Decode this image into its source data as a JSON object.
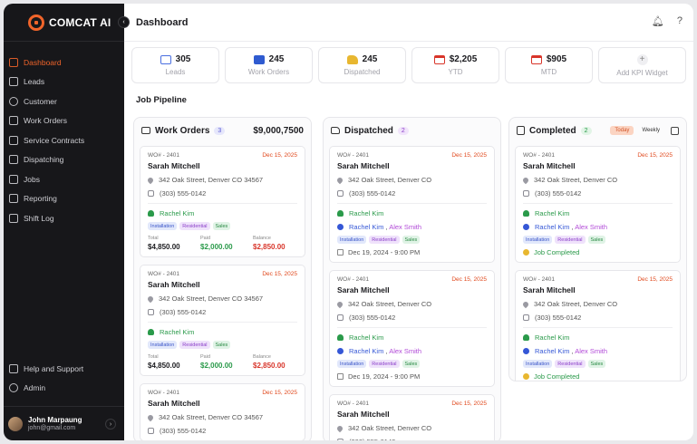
{
  "app": {
    "logo_text": "COMCAT",
    "logo_ai": "AI",
    "page_title": "Dashboard"
  },
  "sidebar": {
    "items": [
      {
        "label": "Dashboard",
        "icon": "home-icon",
        "active": true
      },
      {
        "label": "Leads",
        "icon": "funnel-icon"
      },
      {
        "label": "Customer",
        "icon": "users-icon"
      },
      {
        "label": "Work Orders",
        "icon": "briefcase-icon"
      },
      {
        "label": "Service Contracts",
        "icon": "contract-icon"
      },
      {
        "label": "Dispatching",
        "icon": "truck-icon"
      },
      {
        "label": "Jobs",
        "icon": "building-icon"
      },
      {
        "label": "Reporting",
        "icon": "report-icon"
      },
      {
        "label": "Shift Log",
        "icon": "clipboard-icon"
      }
    ],
    "bottom_items": [
      {
        "label": "Help and Support",
        "icon": "help-icon"
      },
      {
        "label": "Admin",
        "icon": "admin-icon"
      }
    ],
    "user": {
      "name": "John Marpaung",
      "email": "john@gmail.com"
    }
  },
  "kpis": [
    {
      "value": "305",
      "label": "Leads",
      "icon": "leads-icon",
      "color": "#4a6fe0"
    },
    {
      "value": "245",
      "label": "Work Orders",
      "icon": "briefcase-icon",
      "color": "#2f5bd0"
    },
    {
      "value": "245",
      "label": "Dispatched",
      "icon": "truck-icon",
      "color": "#e8b730"
    },
    {
      "value": "$2,205",
      "label": "YTD",
      "icon": "calendar-icon",
      "color": "#d8352a"
    },
    {
      "value": "$905",
      "label": "MTD",
      "icon": "calendar-icon",
      "color": "#d8352a"
    }
  ],
  "add_kpi": {
    "label": "Add KPI Widget",
    "plus": "+"
  },
  "pipeline": {
    "title": "Job Pipeline",
    "work_orders": {
      "title": "Work Orders",
      "count": "3",
      "amount": "$9,000,7500"
    },
    "dispatched": {
      "title": "Dispatched",
      "count": "2"
    },
    "completed": {
      "title": "Completed",
      "count": "2",
      "today": "Today",
      "weekly": "Weekly"
    },
    "card": {
      "wo": "WO# - 2401",
      "date": "Dec 15, 2025",
      "name": "Sarah Mitchell",
      "address": "342 Oak Street, Denver CO 34567",
      "address_short": "342 Oak Street, Denver CO",
      "phone": "(303) 555-0142",
      "tech": "Rachel Kim",
      "tech2": "Alex Smith",
      "tags": [
        "Installation",
        "Residential",
        "Sales"
      ],
      "total_label": "Total",
      "total": "$4,850.00",
      "paid_label": "Paid",
      "paid": "$2,000.00",
      "balance_label": "Balance",
      "balance": "$2,850.00",
      "schedule": "Dec 19, 2024 - 9:00 PM",
      "completed": "Job Completed"
    }
  }
}
